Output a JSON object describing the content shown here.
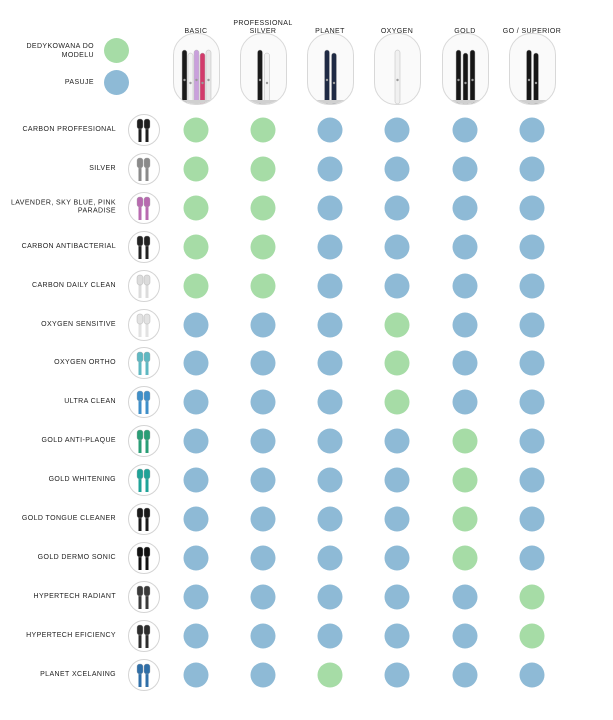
{
  "legend": [
    {
      "label": "DEDYKOWANA DO MODELU",
      "status": "dedicated"
    },
    {
      "label": "PASUJE",
      "status": "fits"
    }
  ],
  "colors": {
    "dedicated": "#a6dca6",
    "fits": "#8ebad6"
  },
  "columns": [
    {
      "label": "BASIC",
      "brush_colors": [
        "#1a1a1a",
        "#f2f2f2",
        "#c9a0dc",
        "#d23b6b",
        "#e8e8e8"
      ]
    },
    {
      "label": "PROFESSIONAL SILVER",
      "brush_colors": [
        "#1a1a1a",
        "#f4f4f4"
      ]
    },
    {
      "label": "PLANET",
      "brush_colors": [
        "#1f2a44",
        "#1f2a44"
      ]
    },
    {
      "label": "OXYGEN",
      "brush_colors": [
        "#f0f0f0"
      ]
    },
    {
      "label": "GOLD",
      "brush_colors": [
        "#161616",
        "#161616",
        "#161616"
      ]
    },
    {
      "label": "GO / SUPERIOR",
      "brush_colors": [
        "#161616",
        "#161616"
      ]
    }
  ],
  "rows": [
    {
      "label": "CARBON PROFFESIONAL",
      "tip_color": "#1e1e1e",
      "compat": [
        "dedicated",
        "dedicated",
        "fits",
        "fits",
        "fits",
        "fits"
      ]
    },
    {
      "label": "SILVER",
      "tip_color": "#8a8a8a",
      "compat": [
        "dedicated",
        "dedicated",
        "fits",
        "fits",
        "fits",
        "fits"
      ]
    },
    {
      "label": "LAVENDER, SKY BLUE, PINK PARADISE",
      "tip_color": "#b86ab0",
      "compat": [
        "dedicated",
        "dedicated",
        "fits",
        "fits",
        "fits",
        "fits"
      ]
    },
    {
      "label": "CARBON ANTIBACTERIAL",
      "tip_color": "#222222",
      "compat": [
        "dedicated",
        "dedicated",
        "fits",
        "fits",
        "fits",
        "fits"
      ]
    },
    {
      "label": "CARBON DAILY CLEAN",
      "tip_color": "#dcdcdc",
      "compat": [
        "dedicated",
        "dedicated",
        "fits",
        "fits",
        "fits",
        "fits"
      ]
    },
    {
      "label": "OXYGEN SENSITIVE",
      "tip_color": "#e2e2e2",
      "compat": [
        "fits",
        "fits",
        "fits",
        "dedicated",
        "fits",
        "fits"
      ]
    },
    {
      "label": "OXYGEN ORTHO",
      "tip_color": "#5fb8c2",
      "compat": [
        "fits",
        "fits",
        "fits",
        "dedicated",
        "fits",
        "fits"
      ]
    },
    {
      "label": "ULTRA CLEAN",
      "tip_color": "#3f8fc9",
      "compat": [
        "fits",
        "fits",
        "fits",
        "dedicated",
        "fits",
        "fits"
      ]
    },
    {
      "label": "GOLD ANTI-PLAQUE",
      "tip_color": "#2a9e76",
      "compat": [
        "fits",
        "fits",
        "fits",
        "fits",
        "dedicated",
        "fits"
      ]
    },
    {
      "label": "GOLD WHITENING",
      "tip_color": "#1fa398",
      "compat": [
        "fits",
        "fits",
        "fits",
        "fits",
        "dedicated",
        "fits"
      ]
    },
    {
      "label": "GOLD TONGUE CLEANER",
      "tip_color": "#1a1a1a",
      "compat": [
        "fits",
        "fits",
        "fits",
        "fits",
        "dedicated",
        "fits"
      ]
    },
    {
      "label": "GOLD DERMO SONIC",
      "tip_color": "#111111",
      "compat": [
        "fits",
        "fits",
        "fits",
        "fits",
        "dedicated",
        "fits"
      ]
    },
    {
      "label": "HYPERTECH RADIANT",
      "tip_color": "#3a3a3a",
      "compat": [
        "fits",
        "fits",
        "fits",
        "fits",
        "fits",
        "dedicated"
      ]
    },
    {
      "label": "HYPERTECH EFICIENCY",
      "tip_color": "#2d2d2d",
      "compat": [
        "fits",
        "fits",
        "fits",
        "fits",
        "fits",
        "dedicated"
      ]
    },
    {
      "label": "PLANET XCELANING",
      "tip_color": "#2f6fa8",
      "compat": [
        "fits",
        "fits",
        "dedicated",
        "fits",
        "fits",
        "fits"
      ]
    }
  ]
}
